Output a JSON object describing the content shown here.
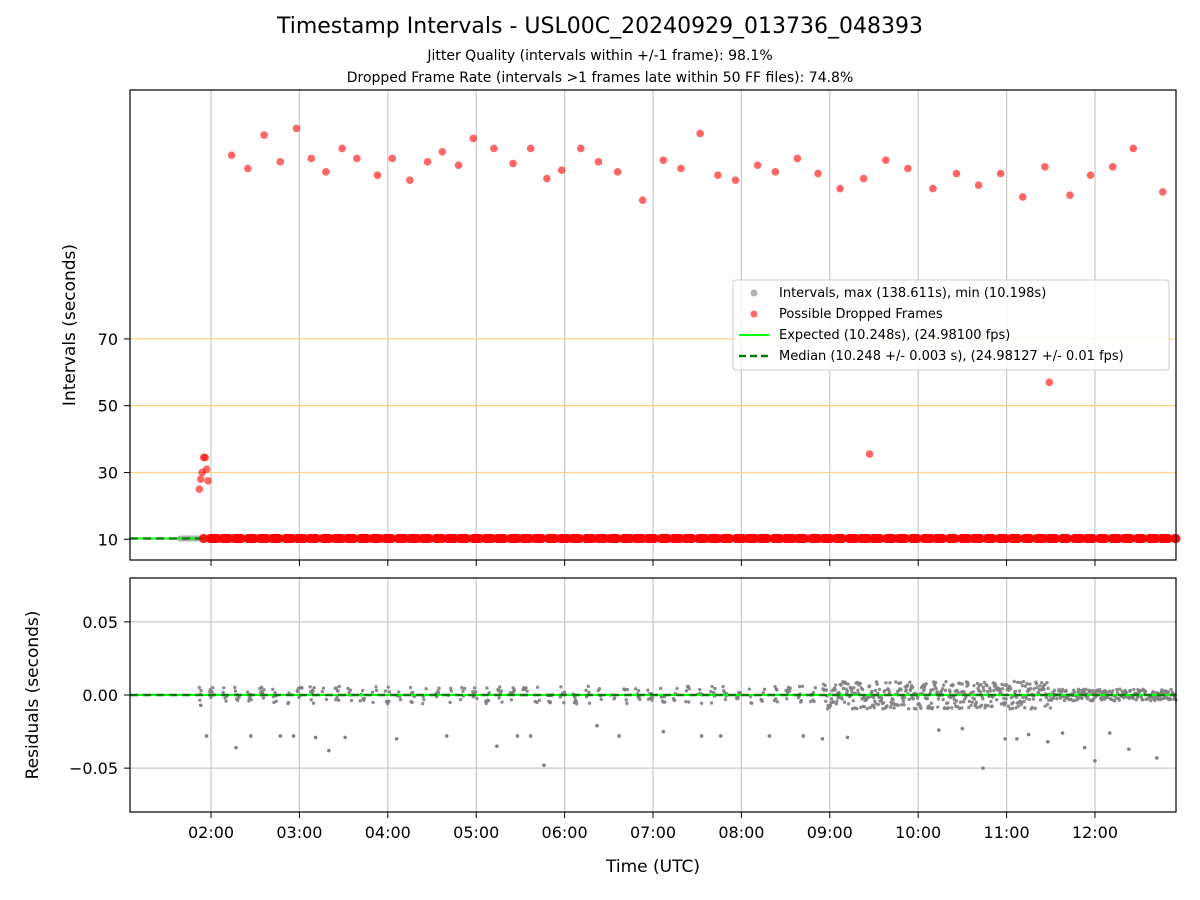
{
  "title": "Timestamp Intervals - USL00C_20240929_013736_048393",
  "subtitle_1": "Jitter Quality (intervals within +/-1 frame): 98.1%",
  "subtitle_2": "Dropped Frame Rate (intervals >1 frames late within 50 FF files): 74.8%",
  "colors": {
    "intervals": "#808080",
    "dropped": "#ff0000",
    "expected": "#00ff00",
    "median": "#008000",
    "threshold": "#ffd27f",
    "grid": "#c8c8c8"
  },
  "chart_data": [
    {
      "type": "scatter",
      "name": "intervals",
      "ylabel": "Intervals (seconds)",
      "xlabel": "",
      "x_unit": "hours UTC",
      "xlim": [
        "01:05",
        "12:55"
      ],
      "ylim": [
        3.8,
        144.5
      ],
      "y_ticks": [
        "10",
        "30",
        "50",
        "70"
      ],
      "y_tick_values": [
        10,
        30,
        50,
        70
      ],
      "x_ticks": [
        "02:00",
        "03:00",
        "04:00",
        "05:00",
        "06:00",
        "07:00",
        "08:00",
        "09:00",
        "10:00",
        "11:00",
        "12:00"
      ],
      "horizontal_lines": [
        30,
        50,
        70
      ],
      "expected_value": 10.248,
      "median_value": 10.248,
      "grid": "vertical",
      "legend_position": "center-right",
      "legend": [
        "Intervals, max (138.611s), min (10.198s)",
        "Possible Dropped Frames",
        "Expected (10.248s), (24.98100 fps)",
        "Median (10.248 +/- 0.003 s), (24.98127 +/- 0.01 fps)"
      ],
      "series": [
        {
          "name": "Possible Dropped Frames",
          "points": [
            {
              "x": "01:52",
              "y": 25
            },
            {
              "x": "01:53",
              "y": 28
            },
            {
              "x": "01:54",
              "y": 30
            },
            {
              "x": "01:55",
              "y": 34.5
            },
            {
              "x": "01:56",
              "y": 34.5
            },
            {
              "x": "01:57",
              "y": 31
            },
            {
              "x": "01:58",
              "y": 27.5
            },
            {
              "x": "02:14",
              "y": 125
            },
            {
              "x": "02:25",
              "y": 121
            },
            {
              "x": "02:36",
              "y": 131
            },
            {
              "x": "02:47",
              "y": 123
            },
            {
              "x": "02:58",
              "y": 133
            },
            {
              "x": "03:08",
              "y": 124
            },
            {
              "x": "03:18",
              "y": 120
            },
            {
              "x": "03:29",
              "y": 127
            },
            {
              "x": "03:39",
              "y": 124
            },
            {
              "x": "03:53",
              "y": 119
            },
            {
              "x": "04:03",
              "y": 124
            },
            {
              "x": "04:15",
              "y": 117.5
            },
            {
              "x": "04:27",
              "y": 123
            },
            {
              "x": "04:37",
              "y": 126
            },
            {
              "x": "04:48",
              "y": 122
            },
            {
              "x": "04:58",
              "y": 130
            },
            {
              "x": "05:12",
              "y": 127
            },
            {
              "x": "05:25",
              "y": 122.5
            },
            {
              "x": "05:37",
              "y": 127
            },
            {
              "x": "05:48",
              "y": 118
            },
            {
              "x": "05:58",
              "y": 120.5
            },
            {
              "x": "06:11",
              "y": 127
            },
            {
              "x": "06:23",
              "y": 123
            },
            {
              "x": "06:36",
              "y": 120
            },
            {
              "x": "06:53",
              "y": 111.5
            },
            {
              "x": "07:07",
              "y": 123.5
            },
            {
              "x": "07:19",
              "y": 121
            },
            {
              "x": "07:32",
              "y": 131.5
            },
            {
              "x": "07:44",
              "y": 119
            },
            {
              "x": "07:56",
              "y": 117.5
            },
            {
              "x": "08:11",
              "y": 122
            },
            {
              "x": "08:23",
              "y": 120
            },
            {
              "x": "08:38",
              "y": 124
            },
            {
              "x": "08:52",
              "y": 119.5
            },
            {
              "x": "09:07",
              "y": 115
            },
            {
              "x": "09:23",
              "y": 118
            },
            {
              "x": "09:38",
              "y": 123.5
            },
            {
              "x": "09:53",
              "y": 121
            },
            {
              "x": "10:10",
              "y": 115
            },
            {
              "x": "10:26",
              "y": 119.5
            },
            {
              "x": "10:41",
              "y": 116
            },
            {
              "x": "10:56",
              "y": 119.5
            },
            {
              "x": "11:11",
              "y": 112.5
            },
            {
              "x": "11:26",
              "y": 121.5
            },
            {
              "x": "11:43",
              "y": 113
            },
            {
              "x": "11:57",
              "y": 119
            },
            {
              "x": "12:12",
              "y": 121.5
            },
            {
              "x": "12:26",
              "y": 127
            },
            {
              "x": "12:46",
              "y": 114
            },
            {
              "x": "09:27",
              "y": 35.5
            },
            {
              "x": "11:29",
              "y": 57
            }
          ]
        },
        {
          "name": "Intervals, max (138.611s), min (10.198s)",
          "x_range": [
            "01:39",
            "12:55"
          ],
          "y": 10.248
        }
      ]
    },
    {
      "type": "scatter",
      "name": "residuals",
      "ylabel": "Residuals (seconds)",
      "xlabel": "Time (UTC)",
      "xlim": [
        "01:05",
        "12:55"
      ],
      "ylim": [
        -0.08,
        0.08
      ],
      "y_ticks": [
        "0.05",
        "0.00",
        "−0.05"
      ],
      "y_tick_values": [
        0.05,
        0,
        -0.05
      ],
      "x_ticks": [
        "02:00",
        "03:00",
        "04:00",
        "05:00",
        "06:00",
        "07:00",
        "08:00",
        "09:00",
        "10:00",
        "11:00",
        "12:00"
      ],
      "grid": "both",
      "reference_line": 0,
      "note": "residuals mostly within ±0.01 s; denser band between 09:00 and 11:30",
      "outliers": [
        {
          "x": "01:53",
          "y": -0.007
        },
        {
          "x": "01:57",
          "y": -0.028
        },
        {
          "x": "02:17",
          "y": -0.036
        },
        {
          "x": "02:27",
          "y": -0.028
        },
        {
          "x": "02:47",
          "y": -0.028
        },
        {
          "x": "02:56",
          "y": -0.028
        },
        {
          "x": "03:11",
          "y": -0.029
        },
        {
          "x": "03:20",
          "y": -0.038
        },
        {
          "x": "03:31",
          "y": -0.029
        },
        {
          "x": "04:06",
          "y": -0.03
        },
        {
          "x": "04:40",
          "y": -0.028
        },
        {
          "x": "05:14",
          "y": -0.035
        },
        {
          "x": "05:28",
          "y": -0.028
        },
        {
          "x": "05:37",
          "y": -0.028
        },
        {
          "x": "05:46",
          "y": -0.048
        },
        {
          "x": "06:22",
          "y": -0.021
        },
        {
          "x": "06:37",
          "y": -0.028
        },
        {
          "x": "07:07",
          "y": -0.025
        },
        {
          "x": "07:33",
          "y": -0.028
        },
        {
          "x": "07:46",
          "y": -0.028
        },
        {
          "x": "08:19",
          "y": -0.028
        },
        {
          "x": "08:42",
          "y": -0.028
        },
        {
          "x": "08:55",
          "y": -0.03
        },
        {
          "x": "09:12",
          "y": -0.029
        },
        {
          "x": "10:14",
          "y": -0.024
        },
        {
          "x": "10:30",
          "y": -0.023
        },
        {
          "x": "10:44",
          "y": -0.05
        },
        {
          "x": "10:59",
          "y": -0.03
        },
        {
          "x": "11:07",
          "y": -0.03
        },
        {
          "x": "11:15",
          "y": -0.027
        },
        {
          "x": "11:28",
          "y": -0.032
        },
        {
          "x": "11:38",
          "y": -0.026
        },
        {
          "x": "11:53",
          "y": -0.036
        },
        {
          "x": "12:00",
          "y": -0.045
        },
        {
          "x": "12:10",
          "y": -0.026
        },
        {
          "x": "12:23",
          "y": -0.037
        },
        {
          "x": "12:42",
          "y": -0.043
        }
      ]
    }
  ]
}
